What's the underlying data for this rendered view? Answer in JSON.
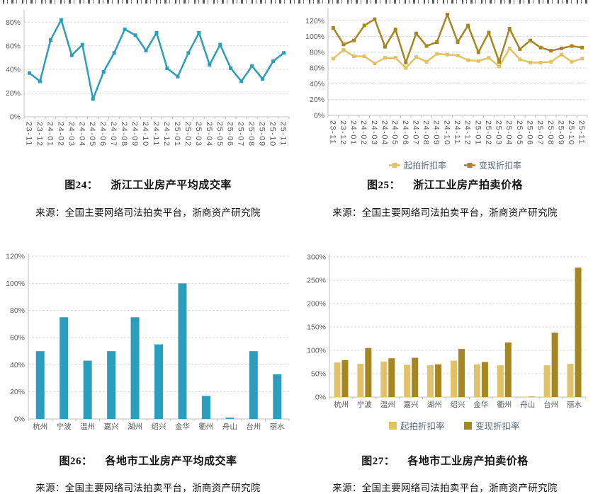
{
  "colors": {
    "teal": "#2B9EBD",
    "light_gold": "#E2C269",
    "dark_gold": "#A6861F",
    "axis_line": "#bfbfbf",
    "gridline": "#d9d9d9",
    "tick_label": "#595959",
    "legend_text": "#5a6a7c"
  },
  "chart_data": [
    {
      "type": "line",
      "caption_label": "图24：",
      "title": "浙江工业房产平均成交率",
      "source": "来源：全国主要网络司法拍卖平台，浙商资产研究院",
      "categories": [
        "23-11",
        "23-12",
        "24-01",
        "24-02",
        "24-03",
        "24-04",
        "24-05",
        "24-06",
        "24-07",
        "24-08",
        "24-09",
        "24-10",
        "24-11",
        "24-12",
        "25-01",
        "25-02",
        "25-03",
        "25-04",
        "25-05",
        "25-06",
        "25-07",
        "25-08",
        "25-09",
        "25-10",
        "25-11"
      ],
      "values": [
        37,
        30,
        65,
        82,
        52,
        61,
        15,
        38,
        54,
        74,
        69,
        56,
        71,
        41,
        34,
        54,
        71,
        44,
        61,
        41,
        30,
        43,
        32,
        47,
        54
      ],
      "line_color": "#2B9EBD",
      "xlabel": "",
      "ylabel": "",
      "ylim": [
        0,
        88
      ],
      "ytick": 20,
      "y_format": "percent",
      "grid": "horizontal-dashed",
      "x_labels_rotated": true,
      "legend_position": "none"
    },
    {
      "type": "line",
      "caption_label": "图25：",
      "title": "浙江工业房产拍卖价格",
      "source": "来源：全国主要网络司法拍卖平台，浙商资产研究院",
      "categories": [
        "23-11",
        "23-12",
        "24-01",
        "24-02",
        "24-03",
        "24-04",
        "24-05",
        "24-06",
        "24-07",
        "24-08",
        "24-09",
        "24-10",
        "24-11",
        "24-12",
        "25-01",
        "25-02",
        "25-03",
        "25-04",
        "25-05",
        "25-06",
        "25-07",
        "25-08",
        "25-09",
        "25-10",
        "25-11"
      ],
      "series": [
        {
          "name": "起拍折扣率",
          "color": "#E2C269",
          "values": [
            72,
            83,
            75,
            75,
            66,
            73,
            73,
            60,
            74,
            68,
            78,
            77,
            76,
            70,
            69,
            73,
            62,
            85,
            71,
            67,
            67,
            68,
            77,
            68,
            72
          ]
        },
        {
          "name": "变现折扣率",
          "color": "#A6861F",
          "values": [
            111,
            90,
            95,
            114,
            122,
            87,
            109,
            67,
            104,
            88,
            93,
            128,
            93,
            114,
            80,
            105,
            68,
            110,
            84,
            95,
            86,
            82,
            85,
            88,
            86
          ]
        }
      ],
      "xlabel": "",
      "ylabel": "",
      "ylim": [
        0,
        132
      ],
      "ytick": 20,
      "y_format": "percent",
      "grid": "horizontal-dashed",
      "x_labels_rotated": true,
      "legend_position": "bottom"
    },
    {
      "type": "bar",
      "caption_label": "图26：",
      "title": "各地市工业房产平均成交率",
      "source": "来源：全国主要网络司法拍卖平台，浙商资产研究院",
      "categories": [
        "杭州",
        "宁波",
        "温州",
        "嘉兴",
        "湖州",
        "绍兴",
        "金华",
        "衢州",
        "舟山",
        "台州",
        "丽水"
      ],
      "values": [
        50,
        75,
        43,
        50,
        75,
        55,
        100,
        17,
        1,
        50,
        33
      ],
      "bar_color": "#2B9EBD",
      "xlabel": "",
      "ylabel": "",
      "ylim": [
        0,
        120
      ],
      "ytick": 20,
      "y_format": "percent",
      "grid": "horizontal-dashed",
      "x_labels_rotated": false,
      "legend_position": "none"
    },
    {
      "type": "bar",
      "caption_label": "图27：",
      "title": "各地市工业房产拍卖价格",
      "source": "来源：全国主要网络司法拍卖平台，浙商资产研究院",
      "categories": [
        "杭州",
        "宁波",
        "温州",
        "嘉兴",
        "湖州",
        "绍兴",
        "金华",
        "衢州",
        "舟山",
        "台州",
        "丽水"
      ],
      "series": [
        {
          "name": "起拍折扣率",
          "color": "#E2C269",
          "values": [
            74,
            71,
            76,
            69,
            68,
            78,
            70,
            68,
            1,
            68,
            71
          ]
        },
        {
          "name": "变现折扣率",
          "color": "#A6861F",
          "values": [
            79,
            105,
            83,
            84,
            70,
            103,
            75,
            117,
            1,
            138,
            277
          ]
        }
      ],
      "xlabel": "",
      "ylabel": "",
      "ylim": [
        0,
        300
      ],
      "ytick": 50,
      "y_format": "percent",
      "grid": "horizontal-dashed",
      "x_labels_rotated": false,
      "legend_position": "bottom"
    }
  ]
}
